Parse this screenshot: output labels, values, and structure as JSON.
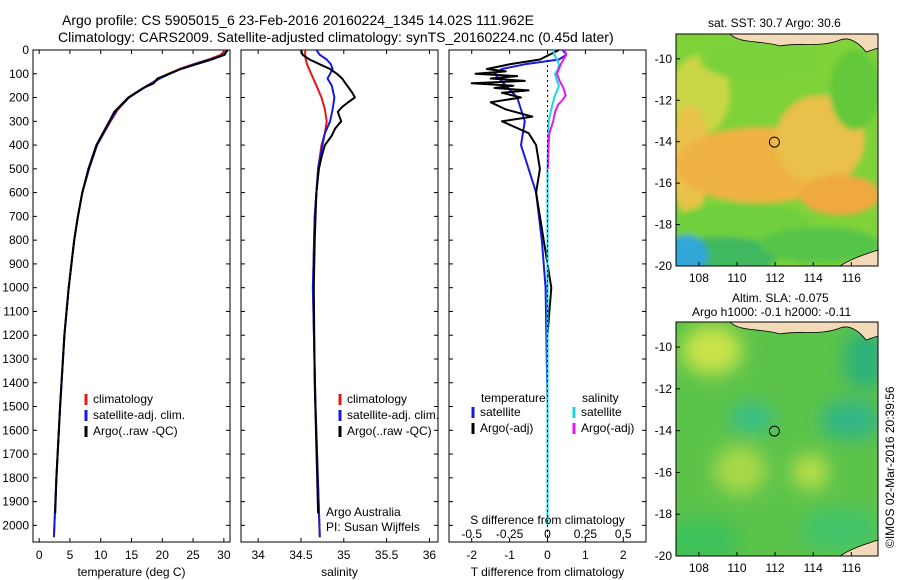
{
  "header": {
    "line1": "Argo profile: CS 5905015_6 23-Feb-2016 20160224_1345 14.02S 111.962E",
    "line2": "Climatology: CARS2009. Satellite-adjusted climatology: synTS_20160224.nc (0.45d later)"
  },
  "colors": {
    "climatology": "#e01a1a",
    "satellite": "#1a1adc",
    "argo": "#000000",
    "sal_satellite": "#1ad7e6",
    "sal_argo": "#e61ae6"
  },
  "chart_data": [
    {
      "type": "line",
      "panel": "temperature",
      "xlabel": "temperature (deg C)",
      "xlim": [
        -1,
        31
      ],
      "xticks": [
        0,
        5,
        10,
        15,
        20,
        25,
        30
      ],
      "ylim": [
        2070,
        0
      ],
      "yticks": [
        0,
        100,
        200,
        300,
        400,
        500,
        600,
        700,
        800,
        900,
        1000,
        1100,
        1200,
        1300,
        1400,
        1500,
        1600,
        1700,
        1800,
        1900,
        2000
      ],
      "legend": [
        "climatology",
        "satellite-adj. clim.",
        "Argo(..raw -QC)"
      ],
      "legend_position": "lower-middle",
      "series": [
        {
          "name": "climatology",
          "color_key": "climatology",
          "y": [
            0,
            20,
            40,
            60,
            80,
            100,
            120,
            150,
            200,
            250,
            300,
            400,
            500,
            600,
            700,
            800,
            1000,
            1200,
            1500,
            1800,
            2050
          ],
          "x": [
            30.2,
            29.5,
            27.5,
            25.0,
            22.8,
            21.0,
            19.5,
            17.5,
            14.6,
            12.8,
            11.6,
            9.4,
            8.1,
            7.0,
            6.3,
            5.7,
            4.8,
            4.1,
            3.4,
            2.8,
            2.4
          ]
        },
        {
          "name": "satellite-adj. clim.",
          "color_key": "satellite",
          "y": [
            0,
            20,
            40,
            60,
            80,
            100,
            120,
            150,
            200,
            250,
            300,
            400,
            500,
            600,
            700,
            800,
            1000,
            1200,
            1500,
            1800,
            2050
          ],
          "x": [
            30.6,
            30.0,
            27.8,
            25.2,
            23.0,
            21.2,
            19.6,
            17.6,
            14.6,
            12.7,
            11.5,
            9.4,
            8.1,
            7.0,
            6.3,
            5.7,
            4.8,
            4.1,
            3.4,
            2.8,
            2.4
          ]
        },
        {
          "name": "Argo(..raw -QC)",
          "color_key": "argo",
          "y": [
            0,
            20,
            40,
            60,
            80,
            100,
            120,
            140,
            160,
            200,
            260,
            300,
            400,
            500,
            600,
            700,
            800,
            1000,
            1200,
            1500,
            1800,
            1950
          ],
          "x": [
            30.6,
            30.1,
            28.0,
            25.5,
            23.0,
            21.1,
            19.2,
            18.6,
            16.9,
            14.5,
            12.2,
            11.4,
            9.3,
            8.0,
            7.0,
            6.3,
            5.7,
            4.8,
            4.1,
            3.4,
            2.8,
            2.6
          ]
        }
      ]
    },
    {
      "type": "line",
      "panel": "salinity",
      "xlabel": "salinity",
      "xlim": [
        33.8,
        36.1
      ],
      "xticks": [
        34,
        34.5,
        35,
        35.5,
        36
      ],
      "ylim": [
        2070,
        0
      ],
      "legend": [
        "climatology",
        "satellite-adj. clim.",
        "Argo(..raw -QC)"
      ],
      "legend_position": "lower-right",
      "annotations": [
        "Argo Australia",
        "PI: Susan Wijffels"
      ],
      "series": [
        {
          "name": "climatology",
          "color_key": "climatology",
          "y": [
            0,
            30,
            60,
            100,
            150,
            200,
            250,
            300,
            350,
            400,
            500,
            700,
            1000,
            1500,
            2050
          ],
          "x": [
            34.55,
            34.55,
            34.57,
            34.62,
            34.68,
            34.74,
            34.78,
            34.8,
            34.78,
            34.74,
            34.7,
            34.66,
            34.64,
            34.67,
            34.72
          ]
        },
        {
          "name": "satellite-adj. clim.",
          "color_key": "satellite",
          "y": [
            0,
            20,
            40,
            60,
            80,
            100,
            120,
            150,
            200,
            250,
            300,
            350,
            400,
            500,
            700,
            1000,
            1500,
            2050
          ],
          "x": [
            34.68,
            34.72,
            34.8,
            34.85,
            34.87,
            34.84,
            34.81,
            34.86,
            34.89,
            34.87,
            34.84,
            34.78,
            34.75,
            34.7,
            34.66,
            34.64,
            34.67,
            34.72
          ]
        },
        {
          "name": "Argo(..raw -QC)",
          "color_key": "argo",
          "y": [
            0,
            20,
            40,
            60,
            80,
            100,
            120,
            140,
            160,
            180,
            200,
            220,
            240,
            260,
            280,
            300,
            330,
            360,
            400,
            450,
            500,
            600,
            800,
            1000,
            1400,
            1800,
            1950
          ],
          "x": [
            34.5,
            34.52,
            34.6,
            34.72,
            34.84,
            34.92,
            34.98,
            35.02,
            35.06,
            35.1,
            35.13,
            35.05,
            34.98,
            34.93,
            34.95,
            34.97,
            34.9,
            34.86,
            34.78,
            34.74,
            34.71,
            34.68,
            34.66,
            34.65,
            34.66,
            34.69,
            34.7
          ]
        }
      ]
    },
    {
      "type": "line",
      "panel": "difference",
      "xlabel": "T difference from climatology",
      "xlabel_top": "S difference from climatology",
      "xlim": [
        -2.6,
        2.6
      ],
      "xticks": [
        -2,
        -1,
        0,
        1,
        2
      ],
      "xticks_top": [
        "-0.5",
        "-0.25",
        "0",
        "0.25",
        "0.5"
      ],
      "ylim": [
        2070,
        0
      ],
      "legend_groups": [
        {
          "title": "temperature",
          "entries": [
            "satellite",
            "Argo(-adj)"
          ]
        },
        {
          "title": "salinity",
          "entries": [
            "satellite",
            "Argo(-adj)"
          ]
        }
      ],
      "series": [
        {
          "name": "satellite",
          "group": "temperature",
          "color_key": "satellite",
          "y": [
            0,
            20,
            40,
            60,
            80,
            100,
            150,
            200,
            300,
            400,
            500,
            600,
            800,
            1000,
            1500,
            2000
          ],
          "x": [
            0.4,
            0.5,
            0.3,
            -0.6,
            -1.2,
            -1.4,
            -1.1,
            -0.8,
            -0.6,
            -0.7,
            -0.5,
            -0.3,
            -0.15,
            -0.05,
            0.0,
            0.0
          ]
        },
        {
          "name": "Argo(-adj)",
          "group": "temperature",
          "color_key": "argo",
          "y": [
            0,
            40,
            60,
            80,
            90,
            100,
            110,
            120,
            130,
            140,
            150,
            160,
            170,
            180,
            200,
            220,
            250,
            280,
            300,
            350,
            400,
            500,
            600,
            800,
            1000,
            1200
          ],
          "x": [
            0.3,
            -0.2,
            -1.0,
            -1.6,
            -1.1,
            -1.9,
            -0.8,
            -1.5,
            -0.6,
            -2.0,
            -0.9,
            -1.4,
            -0.5,
            -1.2,
            -0.7,
            -1.5,
            -1.1,
            -0.4,
            -1.2,
            -0.5,
            -0.3,
            -0.2,
            -0.3,
            -0.1,
            0.1,
            0.0
          ]
        },
        {
          "name": "satellite",
          "group": "salinity",
          "color_key": "sal_satellite",
          "y": [
            0,
            20,
            40,
            60,
            80,
            100,
            120,
            150,
            200,
            250,
            300,
            400,
            500,
            700,
            1000,
            1500,
            2000
          ],
          "x": [
            0.15,
            0.18,
            0.25,
            0.3,
            0.28,
            0.2,
            0.23,
            0.3,
            0.18,
            0.1,
            0.03,
            0.01,
            0.0,
            0.0,
            0.0,
            0.0,
            0.0
          ]
        },
        {
          "name": "Argo(-adj)",
          "group": "salinity",
          "color_key": "sal_argo",
          "y": [
            0,
            20,
            40,
            60,
            80,
            100,
            130,
            160,
            190,
            210,
            230,
            260,
            300,
            350,
            400,
            500
          ],
          "x": [
            0.45,
            0.5,
            0.42,
            0.35,
            0.3,
            0.25,
            0.32,
            0.42,
            0.48,
            0.4,
            0.28,
            0.2,
            0.15,
            0.05,
            0.03,
            0.01
          ]
        }
      ]
    },
    {
      "type": "heatmap",
      "panel": "sst_map",
      "title": "sat. SST: 30.7 Argo: 30.6",
      "xticks": [
        108,
        110,
        112,
        114,
        116
      ],
      "yticks": [
        -10,
        -12,
        -14,
        -16,
        -18,
        -20
      ],
      "xlim": [
        106.8,
        117.4
      ],
      "ylim": [
        -20,
        -8.8
      ],
      "marker": {
        "lon": 111.962,
        "lat": -14.02
      }
    },
    {
      "type": "heatmap",
      "panel": "sla_map",
      "title": "Altim. SLA: -0.075",
      "subtitle": "Argo h1000: -0.1 h2000: -0.11",
      "xticks": [
        108,
        110,
        112,
        114,
        116
      ],
      "yticks": [
        -10,
        -12,
        -14,
        -16,
        -18,
        -20
      ],
      "xlim": [
        106.8,
        117.4
      ],
      "ylim": [
        -20,
        -8.8
      ],
      "marker": {
        "lon": 111.962,
        "lat": -14.02
      }
    }
  ],
  "footer_stamp": "©IMOS 02-Mar-2016 20:39:56"
}
